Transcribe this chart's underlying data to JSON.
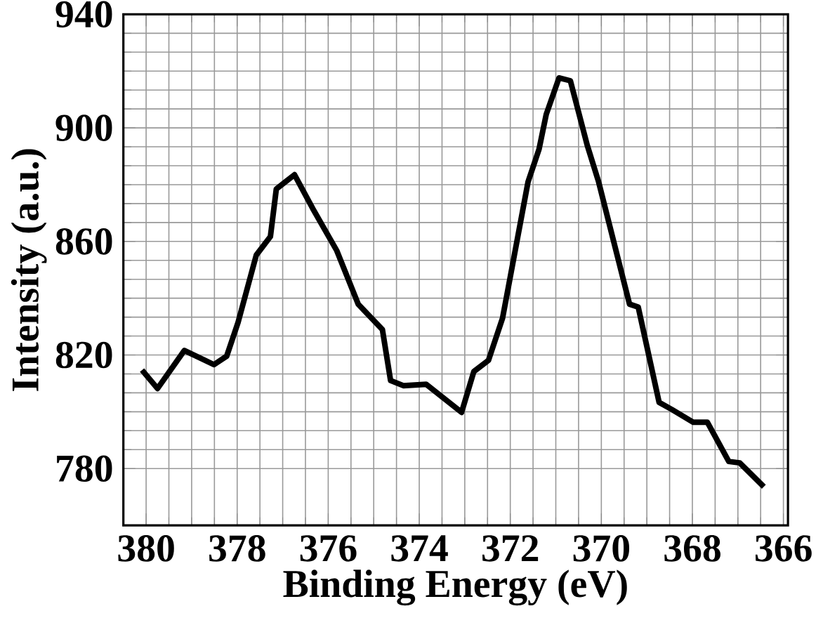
{
  "chart_data": {
    "type": "line",
    "xlabel": "Binding Energy (eV)",
    "ylabel": "Intensity (a.u.)",
    "x": [
      380.09,
      379.75,
      379.16,
      378.51,
      378.23,
      377.98,
      377.58,
      377.27,
      377.14,
      376.74,
      376.34,
      375.81,
      375.34,
      374.81,
      374.63,
      374.35,
      373.85,
      373.07,
      372.8,
      372.48,
      372.17,
      371.61,
      371.37,
      371.21,
      370.93,
      370.68,
      370.31,
      370.06,
      369.38,
      369.19,
      368.73,
      368.45,
      367.98,
      367.67,
      367.2,
      366.96,
      366.43
    ],
    "values": [
      814.7,
      808.2,
      821.6,
      816.6,
      819.6,
      831.5,
      855.2,
      861.7,
      878.5,
      883.5,
      871.6,
      856.7,
      837.9,
      829,
      811,
      809.2,
      809.7,
      799.8,
      814.2,
      818.1,
      833,
      881,
      892.4,
      904.8,
      917.6,
      916.6,
      893.9,
      881,
      837.9,
      836.9,
      803.3,
      800.8,
      796.3,
      796.3,
      782.5,
      782,
      773.6
    ],
    "color": "#000000",
    "xlim": [
      380.5,
      365.9
    ],
    "ylim": [
      760,
      940
    ],
    "xticks": [
      380,
      378,
      376,
      374,
      372,
      370,
      368,
      366
    ],
    "yticks": [
      780,
      820,
      860,
      900,
      940
    ],
    "grid": true,
    "line_style": "solid"
  }
}
